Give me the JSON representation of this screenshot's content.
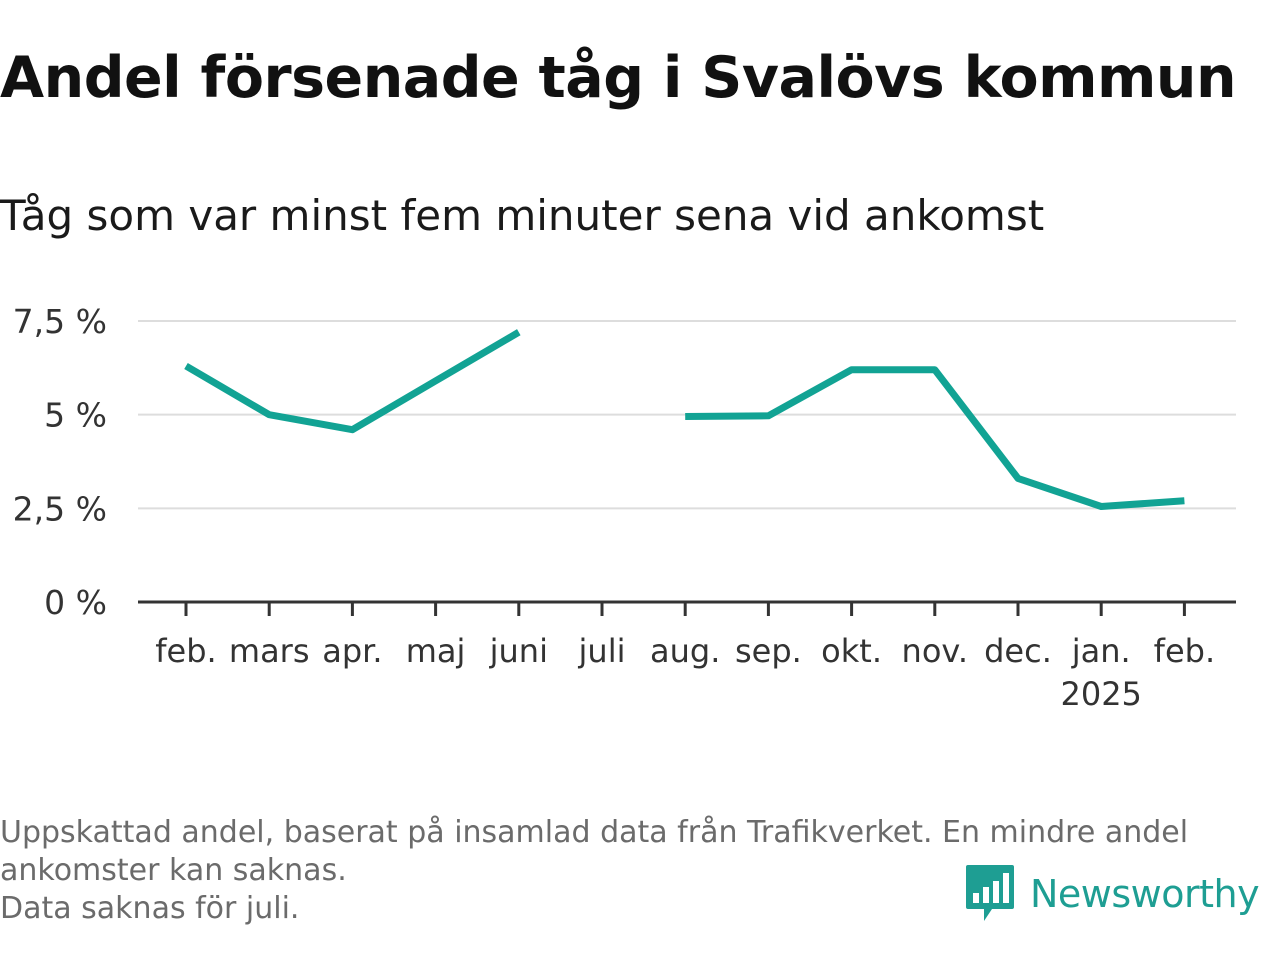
{
  "title": "Andel försenade tåg i Svalövs kommun",
  "subtitle": "Tåg som var minst fem minuter sena vid ankomst",
  "footnote": {
    "line1": "Uppskattad andel, baserat på insamlad data från Trafikverket. En mindre andel",
    "line2": "ankomster kan saknas.",
    "line3": "Data saknas för juli."
  },
  "brand": {
    "name": "Newsworthy",
    "icon": "newsworthy-logo-icon",
    "color": "#1e9e93"
  },
  "chart_data": {
    "type": "line",
    "title": "Andel försenade tåg i Svalövs kommun",
    "subtitle": "Tåg som var minst fem minuter sena vid ankomst",
    "xlabel": "",
    "ylabel": "",
    "categories": [
      "feb.",
      "mars",
      "apr.",
      "maj",
      "juni",
      "juli",
      "aug.",
      "sep.",
      "okt.",
      "nov.",
      "dec.",
      "jan.",
      "feb."
    ],
    "year_labels": [
      "",
      "",
      "",
      "",
      "",
      "",
      "",
      "",
      "",
      "",
      "",
      "2025",
      ""
    ],
    "series": [
      {
        "color": "#12a394",
        "values": [
          6.3,
          5.0,
          4.6,
          5.9,
          7.2,
          null,
          4.95,
          4.97,
          6.2,
          6.2,
          3.3,
          2.55,
          2.7
        ]
      }
    ],
    "ylim": [
      0,
      7.5
    ],
    "yticks": [
      0,
      2.5,
      5,
      7.5
    ],
    "ytick_labels": [
      "0 %",
      "2,5 %",
      "5 %",
      "7,5 %"
    ],
    "grid": true,
    "legend": "none"
  }
}
